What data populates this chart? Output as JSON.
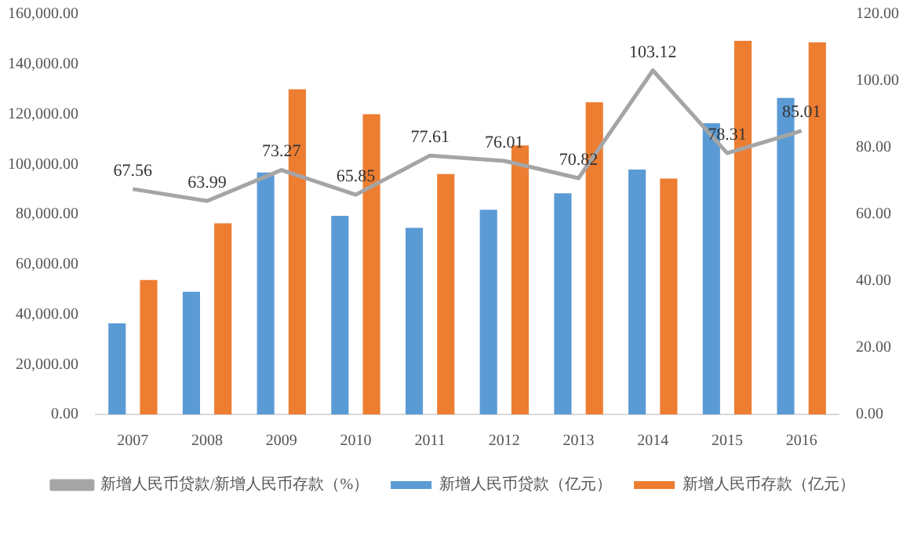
{
  "chart_data": {
    "type": "bar",
    "categories": [
      "2007",
      "2008",
      "2009",
      "2010",
      "2011",
      "2012",
      "2013",
      "2014",
      "2015",
      "2016"
    ],
    "series": [
      {
        "name": "新增人民币贷款（亿元）",
        "color": "#5b9bd5",
        "values": [
          36400,
          49000,
          96700,
          79400,
          74600,
          81800,
          88400,
          97900,
          116400,
          126500
        ]
      },
      {
        "name": "新增人民币存款（亿元）",
        "color": "#ed7d31",
        "values": [
          53700,
          76400,
          130000,
          120000,
          96100,
          107500,
          124800,
          94300,
          149300,
          148700
        ]
      },
      {
        "name": "新增人民币贷款/新增人民币存款（%）",
        "type": "line",
        "axis": "y2",
        "color": "#a5a5a5",
        "marker": "none",
        "values": [
          67.56,
          63.99,
          73.27,
          65.85,
          77.61,
          76.01,
          70.82,
          103.12,
          78.31,
          85.01
        ],
        "value_labels": [
          "67.56",
          "63.99",
          "73.27",
          "65.85",
          "77.61",
          "76.01",
          "70.82",
          "103.12",
          "78.31",
          "85.01"
        ]
      }
    ],
    "ylim": [
      0,
      160000
    ],
    "yticks": [
      {
        "value": 0,
        "label": "0.00"
      },
      {
        "value": 20000,
        "label": "20,000.00"
      },
      {
        "value": 40000,
        "label": "40,000.00"
      },
      {
        "value": 60000,
        "label": "60,000.00"
      },
      {
        "value": 80000,
        "label": "80,000.00"
      },
      {
        "value": 100000,
        "label": "100,000.00"
      },
      {
        "value": 120000,
        "label": "120,000.00"
      },
      {
        "value": 140000,
        "label": "140,000.00"
      },
      {
        "value": 160000,
        "label": "160,000.00"
      }
    ],
    "y2lim": [
      0,
      120
    ],
    "y2ticks": [
      {
        "value": 0,
        "label": "0.00"
      },
      {
        "value": 20,
        "label": "20.00"
      },
      {
        "value": 40,
        "label": "40.00"
      },
      {
        "value": 60,
        "label": "60.00"
      },
      {
        "value": 80,
        "label": "80.00"
      },
      {
        "value": 100,
        "label": "100.00"
      },
      {
        "value": 120,
        "label": "120.00"
      }
    ],
    "grid": false,
    "legend": "bottom"
  }
}
